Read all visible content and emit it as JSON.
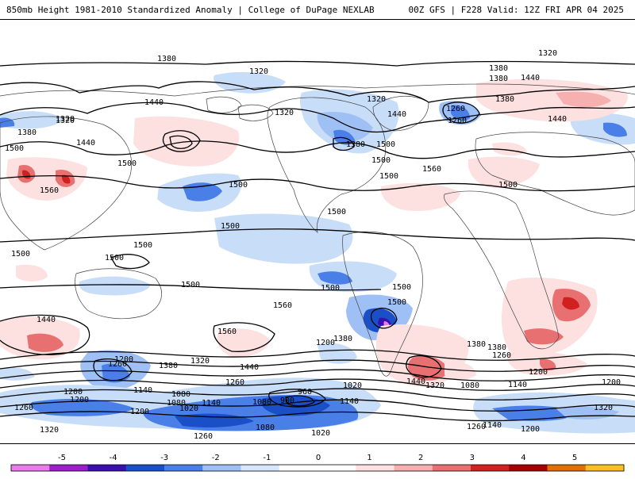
{
  "header": {
    "left": "850mb Height 1981-2010 Standardized Anomaly | College of DuPage NEXLAB",
    "right": "00Z GFS | F228 Valid: 12Z FRI APR 04 2025"
  },
  "colorbar": {
    "ticks": [
      "-5",
      "-4",
      "-3",
      "-2",
      "-1",
      "0",
      "1",
      "2",
      "3",
      "4",
      "5"
    ],
    "colors": [
      "#e87ce8",
      "#9a1fc8",
      "#3a0fb0",
      "#1b4fc8",
      "#4a7fe8",
      "#9ec0f4",
      "#d6e6fb",
      "#ffffff",
      "#ffffff",
      "#fde0e0",
      "#f6b0b0",
      "#e87070",
      "#d02020",
      "#a80000",
      "#e07000",
      "#f8c020"
    ]
  },
  "contour_labels": [
    "1380",
    "1320",
    "1320",
    "1260",
    "1320",
    "1380",
    "1440",
    "1500",
    "1440",
    "1320",
    "1380",
    "1380",
    "1440",
    "1320",
    "1260",
    "1440",
    "1380",
    "1500",
    "1380",
    "1320",
    "1440",
    "1500",
    "1560",
    "1500",
    "1500",
    "1560",
    "1500",
    "1500",
    "1500",
    "1500",
    "1500",
    "1500",
    "1500",
    "1500",
    "1500",
    "1560",
    "1440",
    "1260",
    "1560",
    "1500",
    "1380",
    "1200",
    "1380",
    "1320",
    "1440",
    "1200",
    "1260",
    "1140",
    "1080",
    "1200",
    "1080",
    "1260",
    "1200",
    "1020",
    "1140",
    "1200",
    "1080",
    "1020",
    "960",
    "900",
    "1140",
    "1080",
    "1260",
    "1320",
    "1140",
    "1200",
    "1500",
    "1380",
    "1260",
    "1440",
    "1320",
    "1200",
    "1140",
    "1080",
    "1200",
    "1260",
    "1020",
    "1320",
    "1380"
  ]
}
